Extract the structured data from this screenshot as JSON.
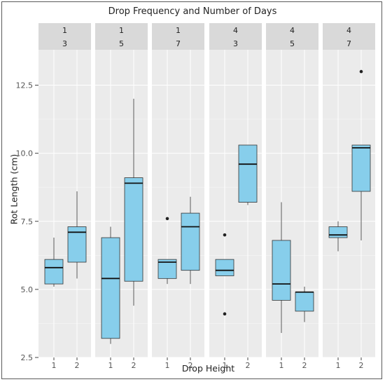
{
  "chart_data": {
    "type": "boxplot",
    "title": "Drop Frequency and Number of Days",
    "xlabel": "Drop Height",
    "ylabel": "Rot Length (cm)",
    "ylim": [
      2.5,
      13.8
    ],
    "y_ticks": [
      "2.5",
      "5.0",
      "7.5",
      "10.0",
      "12.5"
    ],
    "y_tick_values": [
      2.5,
      5.0,
      7.5,
      10.0,
      12.5
    ],
    "x_ticks": [
      "1",
      "2"
    ],
    "box_color": "#87ceeb",
    "panels": [
      {
        "frequency": "1",
        "days": "3",
        "boxes": [
          {
            "x": "1",
            "min": 5.1,
            "q1": 5.2,
            "median": 5.8,
            "q3": 6.1,
            "max": 6.9,
            "outliers": []
          },
          {
            "x": "2",
            "min": 5.4,
            "q1": 6.0,
            "median": 7.1,
            "q3": 7.3,
            "max": 8.6,
            "outliers": []
          }
        ]
      },
      {
        "frequency": "1",
        "days": "5",
        "boxes": [
          {
            "x": "1",
            "min": 3.0,
            "q1": 3.2,
            "median": 5.4,
            "q3": 6.9,
            "max": 7.3,
            "outliers": []
          },
          {
            "x": "2",
            "min": 4.4,
            "q1": 5.3,
            "median": 8.9,
            "q3": 9.1,
            "max": 12.0,
            "outliers": []
          }
        ]
      },
      {
        "frequency": "1",
        "days": "7",
        "boxes": [
          {
            "x": "1",
            "min": 5.2,
            "q1": 5.4,
            "median": 6.0,
            "q3": 6.1,
            "max": 6.1,
            "outliers": [
              7.6
            ]
          },
          {
            "x": "2",
            "min": 5.2,
            "q1": 5.7,
            "median": 7.3,
            "q3": 7.8,
            "max": 8.4,
            "outliers": []
          }
        ]
      },
      {
        "frequency": "4",
        "days": "3",
        "boxes": [
          {
            "x": "1",
            "min": 5.5,
            "q1": 5.5,
            "median": 5.7,
            "q3": 6.1,
            "max": 6.1,
            "outliers": [
              7.0,
              4.1
            ]
          },
          {
            "x": "2",
            "min": 8.1,
            "q1": 8.2,
            "median": 9.6,
            "q3": 10.3,
            "max": 10.3,
            "outliers": []
          }
        ]
      },
      {
        "frequency": "4",
        "days": "5",
        "boxes": [
          {
            "x": "1",
            "min": 3.4,
            "q1": 4.6,
            "median": 5.2,
            "q3": 6.8,
            "max": 8.2,
            "outliers": []
          },
          {
            "x": "2",
            "min": 3.8,
            "q1": 4.2,
            "median": 4.9,
            "q3": 4.9,
            "max": 5.1,
            "outliers": []
          }
        ]
      },
      {
        "frequency": "4",
        "days": "7",
        "boxes": [
          {
            "x": "1",
            "min": 6.4,
            "q1": 6.9,
            "median": 7.0,
            "q3": 7.3,
            "max": 7.5,
            "outliers": []
          },
          {
            "x": "2",
            "min": 6.8,
            "q1": 8.6,
            "median": 10.2,
            "q3": 10.3,
            "max": 10.3,
            "outliers": [
              13.0
            ]
          }
        ]
      }
    ]
  }
}
